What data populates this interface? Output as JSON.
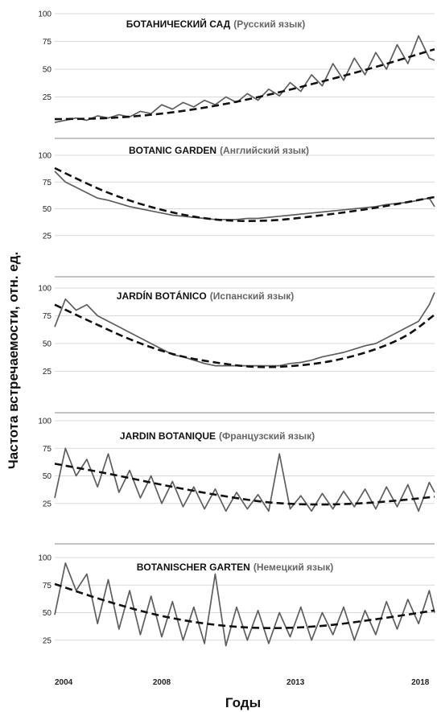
{
  "chart_data": {
    "type": "line",
    "ylabel": "Частота  встречаемости,  отн. ед.",
    "xlabel": "Годы",
    "x_ticks": [
      "2004",
      "2008",
      "2013",
      "2018"
    ],
    "x_range": [
      2004.0,
      2018.2
    ],
    "grid": true,
    "panels": [
      {
        "title": "БОТАНИЧЕСКИЙ САД",
        "subtitle": "(Русский язык)",
        "ylim": [
          0,
          100
        ],
        "y_ticks": [
          25,
          50,
          75,
          100
        ],
        "points": [
          [
            2004.0,
            2
          ],
          [
            2004.4,
            4
          ],
          [
            2004.8,
            6
          ],
          [
            2005.2,
            4
          ],
          [
            2005.6,
            8
          ],
          [
            2006.0,
            6
          ],
          [
            2006.4,
            9
          ],
          [
            2006.8,
            7
          ],
          [
            2007.2,
            12
          ],
          [
            2007.6,
            10
          ],
          [
            2008.0,
            18
          ],
          [
            2008.4,
            14
          ],
          [
            2008.8,
            20
          ],
          [
            2009.2,
            16
          ],
          [
            2009.6,
            22
          ],
          [
            2010.0,
            18
          ],
          [
            2010.4,
            25
          ],
          [
            2010.8,
            20
          ],
          [
            2011.2,
            28
          ],
          [
            2011.6,
            22
          ],
          [
            2012.0,
            32
          ],
          [
            2012.4,
            26
          ],
          [
            2012.8,
            38
          ],
          [
            2013.2,
            30
          ],
          [
            2013.6,
            45
          ],
          [
            2014.0,
            35
          ],
          [
            2014.4,
            55
          ],
          [
            2014.8,
            40
          ],
          [
            2015.2,
            60
          ],
          [
            2015.6,
            45
          ],
          [
            2016.0,
            65
          ],
          [
            2016.4,
            50
          ],
          [
            2016.8,
            72
          ],
          [
            2017.2,
            55
          ],
          [
            2017.6,
            80
          ],
          [
            2018.0,
            60
          ],
          [
            2018.2,
            58
          ]
        ],
        "trend": [
          [
            2004.0,
            5
          ],
          [
            2006.0,
            6
          ],
          [
            2008.0,
            10
          ],
          [
            2010.0,
            17
          ],
          [
            2012.0,
            27
          ],
          [
            2014.0,
            39
          ],
          [
            2016.0,
            52
          ],
          [
            2018.2,
            68
          ]
        ]
      },
      {
        "title": "BOTANIC GARDEN",
        "subtitle": "(Английский язык)",
        "ylim": [
          0,
          100
        ],
        "y_ticks": [
          25,
          50,
          75,
          100
        ],
        "points": [
          [
            2004.0,
            85
          ],
          [
            2004.4,
            75
          ],
          [
            2004.8,
            70
          ],
          [
            2005.2,
            65
          ],
          [
            2005.6,
            60
          ],
          [
            2006.0,
            58
          ],
          [
            2006.4,
            55
          ],
          [
            2006.8,
            52
          ],
          [
            2007.2,
            50
          ],
          [
            2007.6,
            48
          ],
          [
            2008.0,
            46
          ],
          [
            2008.4,
            44
          ],
          [
            2008.8,
            43
          ],
          [
            2009.2,
            42
          ],
          [
            2009.6,
            41
          ],
          [
            2010.0,
            40
          ],
          [
            2010.4,
            40
          ],
          [
            2010.8,
            40
          ],
          [
            2011.2,
            41
          ],
          [
            2011.6,
            41
          ],
          [
            2012.0,
            42
          ],
          [
            2012.4,
            43
          ],
          [
            2012.8,
            44
          ],
          [
            2013.2,
            45
          ],
          [
            2013.6,
            46
          ],
          [
            2014.0,
            47
          ],
          [
            2014.4,
            48
          ],
          [
            2014.8,
            49
          ],
          [
            2015.2,
            50
          ],
          [
            2015.6,
            51
          ],
          [
            2016.0,
            52
          ],
          [
            2016.4,
            54
          ],
          [
            2016.8,
            55
          ],
          [
            2017.2,
            56
          ],
          [
            2017.6,
            58
          ],
          [
            2018.0,
            60
          ],
          [
            2018.2,
            52
          ]
        ],
        "trend": [
          [
            2004.0,
            88
          ],
          [
            2006.0,
            65
          ],
          [
            2008.0,
            49
          ],
          [
            2010.0,
            40
          ],
          [
            2012.0,
            39
          ],
          [
            2014.0,
            44
          ],
          [
            2016.0,
            51
          ],
          [
            2018.2,
            61
          ]
        ]
      },
      {
        "title": "JARDÍN BOTÁNICO",
        "subtitle": "(Испанский язык)",
        "ylim": [
          0,
          100
        ],
        "y_ticks": [
          25,
          50,
          75,
          100
        ],
        "points": [
          [
            2004.0,
            65
          ],
          [
            2004.4,
            90
          ],
          [
            2004.8,
            80
          ],
          [
            2005.2,
            85
          ],
          [
            2005.6,
            75
          ],
          [
            2006.0,
            70
          ],
          [
            2006.4,
            65
          ],
          [
            2006.8,
            60
          ],
          [
            2007.2,
            55
          ],
          [
            2007.6,
            50
          ],
          [
            2008.0,
            45
          ],
          [
            2008.4,
            40
          ],
          [
            2008.8,
            38
          ],
          [
            2009.2,
            35
          ],
          [
            2009.6,
            32
          ],
          [
            2010.0,
            30
          ],
          [
            2010.4,
            30
          ],
          [
            2010.8,
            30
          ],
          [
            2011.2,
            30
          ],
          [
            2011.6,
            30
          ],
          [
            2012.0,
            30
          ],
          [
            2012.4,
            30
          ],
          [
            2012.8,
            32
          ],
          [
            2013.2,
            33
          ],
          [
            2013.6,
            35
          ],
          [
            2014.0,
            38
          ],
          [
            2014.4,
            40
          ],
          [
            2014.8,
            42
          ],
          [
            2015.2,
            45
          ],
          [
            2015.6,
            48
          ],
          [
            2016.0,
            50
          ],
          [
            2016.4,
            55
          ],
          [
            2016.8,
            60
          ],
          [
            2017.2,
            65
          ],
          [
            2017.6,
            70
          ],
          [
            2018.0,
            85
          ],
          [
            2018.2,
            96
          ]
        ],
        "trend": [
          [
            2004.0,
            85
          ],
          [
            2005.5,
            68
          ],
          [
            2007.0,
            52
          ],
          [
            2008.5,
            40
          ],
          [
            2010.0,
            33
          ],
          [
            2011.5,
            29
          ],
          [
            2013.0,
            30
          ],
          [
            2014.5,
            35
          ],
          [
            2016.0,
            45
          ],
          [
            2017.2,
            58
          ],
          [
            2018.2,
            76
          ]
        ]
      },
      {
        "title": "JARDIN BOTANIQUE",
        "subtitle": "(Французский язык)",
        "ylim": [
          0,
          100
        ],
        "y_ticks": [
          25,
          50,
          75,
          100
        ],
        "points": [
          [
            2004.0,
            30
          ],
          [
            2004.4,
            75
          ],
          [
            2004.8,
            50
          ],
          [
            2005.2,
            65
          ],
          [
            2005.6,
            40
          ],
          [
            2006.0,
            70
          ],
          [
            2006.4,
            35
          ],
          [
            2006.8,
            55
          ],
          [
            2007.2,
            30
          ],
          [
            2007.6,
            50
          ],
          [
            2008.0,
            25
          ],
          [
            2008.4,
            45
          ],
          [
            2008.8,
            22
          ],
          [
            2009.2,
            40
          ],
          [
            2009.6,
            20
          ],
          [
            2010.0,
            38
          ],
          [
            2010.4,
            18
          ],
          [
            2010.8,
            35
          ],
          [
            2011.2,
            20
          ],
          [
            2011.6,
            33
          ],
          [
            2012.0,
            18
          ],
          [
            2012.4,
            70
          ],
          [
            2012.8,
            20
          ],
          [
            2013.2,
            32
          ],
          [
            2013.6,
            18
          ],
          [
            2014.0,
            34
          ],
          [
            2014.4,
            20
          ],
          [
            2014.8,
            36
          ],
          [
            2015.2,
            22
          ],
          [
            2015.6,
            38
          ],
          [
            2016.0,
            20
          ],
          [
            2016.4,
            40
          ],
          [
            2016.8,
            22
          ],
          [
            2017.2,
            42
          ],
          [
            2017.6,
            18
          ],
          [
            2018.0,
            44
          ],
          [
            2018.2,
            35
          ]
        ],
        "trend": [
          [
            2004.0,
            61
          ],
          [
            2006.0,
            52
          ],
          [
            2008.0,
            42
          ],
          [
            2010.0,
            33
          ],
          [
            2012.0,
            26
          ],
          [
            2014.0,
            24
          ],
          [
            2016.0,
            26
          ],
          [
            2018.2,
            31
          ]
        ]
      },
      {
        "title": "BOTANISCHER GARTEN",
        "subtitle": "(Немецкий язык)",
        "ylim": [
          0,
          100
        ],
        "y_ticks": [
          25,
          50,
          75,
          100
        ],
        "points": [
          [
            2004.0,
            48
          ],
          [
            2004.4,
            95
          ],
          [
            2004.8,
            70
          ],
          [
            2005.2,
            85
          ],
          [
            2005.6,
            40
          ],
          [
            2006.0,
            80
          ],
          [
            2006.4,
            35
          ],
          [
            2006.8,
            70
          ],
          [
            2007.2,
            30
          ],
          [
            2007.6,
            65
          ],
          [
            2008.0,
            28
          ],
          [
            2008.4,
            60
          ],
          [
            2008.8,
            25
          ],
          [
            2009.2,
            55
          ],
          [
            2009.6,
            22
          ],
          [
            2010.0,
            85
          ],
          [
            2010.4,
            20
          ],
          [
            2010.8,
            55
          ],
          [
            2011.2,
            25
          ],
          [
            2011.6,
            52
          ],
          [
            2012.0,
            22
          ],
          [
            2012.4,
            50
          ],
          [
            2012.8,
            28
          ],
          [
            2013.2,
            55
          ],
          [
            2013.6,
            25
          ],
          [
            2014.0,
            50
          ],
          [
            2014.4,
            30
          ],
          [
            2014.8,
            55
          ],
          [
            2015.2,
            25
          ],
          [
            2015.6,
            52
          ],
          [
            2016.0,
            30
          ],
          [
            2016.4,
            60
          ],
          [
            2016.8,
            35
          ],
          [
            2017.2,
            62
          ],
          [
            2017.6,
            40
          ],
          [
            2018.0,
            70
          ],
          [
            2018.2,
            50
          ]
        ],
        "trend": [
          [
            2004.0,
            76
          ],
          [
            2006.0,
            60
          ],
          [
            2008.0,
            47
          ],
          [
            2010.0,
            39
          ],
          [
            2012.0,
            36
          ],
          [
            2014.0,
            38
          ],
          [
            2016.0,
            44
          ],
          [
            2018.2,
            52
          ]
        ]
      }
    ]
  }
}
